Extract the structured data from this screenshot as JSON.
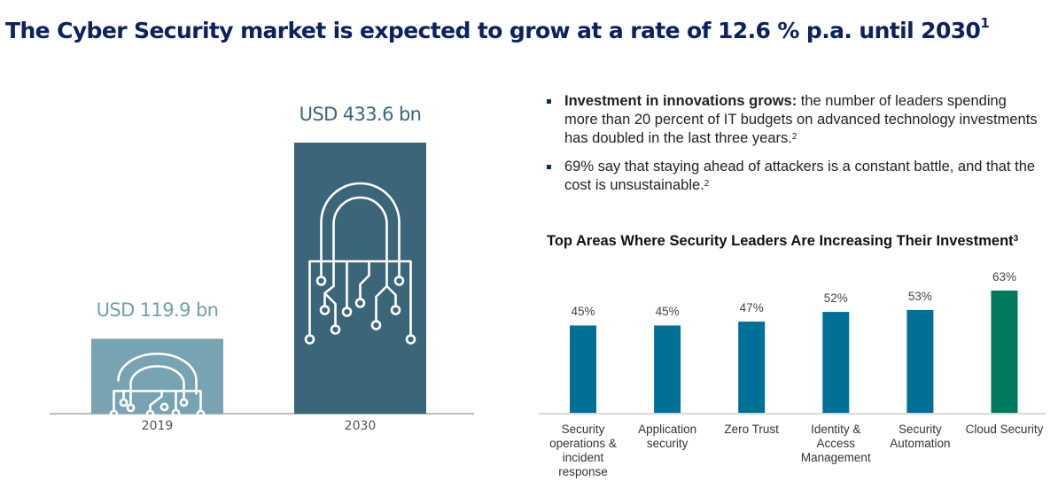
{
  "title": {
    "text": "The Cyber Security market is expected to grow at a rate of 12.6 % p.a. until 2030",
    "footnote": "1"
  },
  "bullets": [
    {
      "bold": "Investment in innovations grows:",
      "text": " the number of leaders spending more than 20 percent of IT budgets on advanced technology investments has doubled in the last three years.",
      "footnote": "2"
    },
    {
      "bold": "",
      "text": "69% say that staying ahead of attackers is a constant battle, and that the cost is unsustainable.",
      "footnote": "2"
    }
  ],
  "colors": {
    "title": "#0b2160",
    "bar2019": "#78a3b2",
    "bar2030": "#3b6679",
    "label2019": "#6f9fae",
    "label2030": "#3b6679",
    "bar_blue": "#007096",
    "bar_green": "#007a5e"
  },
  "chart_data": [
    {
      "type": "bar",
      "title": "Cyber Security market size",
      "categories": [
        "2019",
        "2030"
      ],
      "values": [
        119.9,
        433.6
      ],
      "units": "USD bn",
      "data_labels": [
        "USD 119.9 bn",
        "USD 433.6 bn"
      ],
      "icons": [
        "circuit-lock-icon",
        "circuit-lock-icon"
      ],
      "xlabel": "",
      "ylabel": "",
      "ylim": [
        0,
        433.6
      ],
      "grid": false
    },
    {
      "type": "bar",
      "title": "Top Areas Where Security Leaders Are Increasing Their Investment",
      "title_footnote": "3",
      "categories": [
        "Security operations & incident response",
        "Application security",
        "Zero Trust",
        "Identity & Access Management",
        "Security Automation",
        "Cloud Security"
      ],
      "values": [
        45,
        45,
        47,
        52,
        53,
        63
      ],
      "data_labels": [
        "45%",
        "45%",
        "47%",
        "52%",
        "53%",
        "63%"
      ],
      "highlight": [
        false,
        false,
        false,
        false,
        false,
        true
      ],
      "units": "%",
      "xlabel": "",
      "ylabel": "",
      "ylim": [
        0,
        63
      ],
      "grid": false,
      "legend": "none"
    }
  ]
}
